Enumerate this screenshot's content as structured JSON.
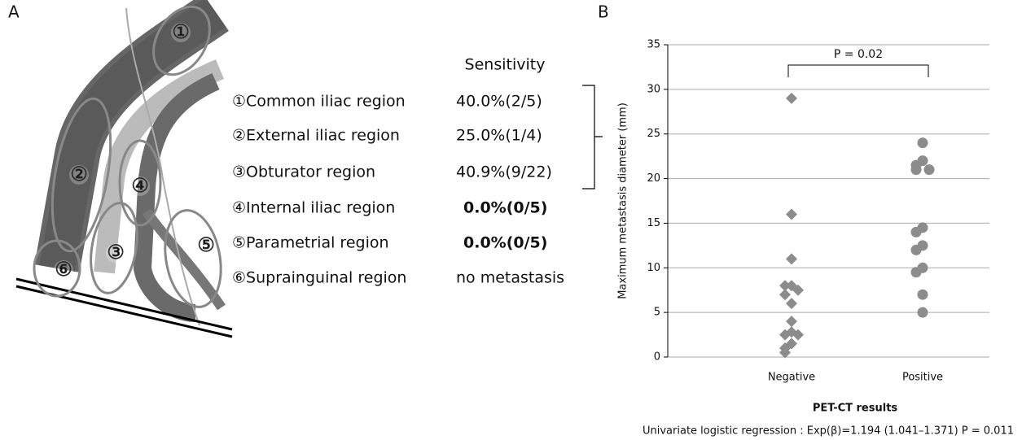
{
  "panel_a": {
    "label": "A",
    "header": "Sensitivity",
    "rows": [
      {
        "region": "①Common iliac region",
        "sensitivity": "40.0%(2/5)",
        "emphasis": false
      },
      {
        "region": "②External iliac region",
        "sensitivity": "25.0%(1/4)",
        "emphasis": false
      },
      {
        "region": "③Obturator region",
        "sensitivity": "40.9%(9/22)",
        "emphasis": false
      },
      {
        "region": "④Internal iliac region",
        "sensitivity": "0.0%(0/5)",
        "emphasis": true
      },
      {
        "region": "⑤Parametrial region",
        "sensitivity": "0.0%(0/5)",
        "emphasis": true
      },
      {
        "region": "⑥Suprainguinal region",
        "sensitivity": "no metastasis",
        "emphasis": false
      }
    ],
    "diagram_labels": [
      "①",
      "②",
      "③",
      "④",
      "⑤",
      "⑥"
    ]
  },
  "chart_data": {
    "type": "strip",
    "label": "B",
    "ylabel": "Maximum metastasis diameter (mm)",
    "xlabel": "PET-CT results",
    "footnote": "Univariate logistic regression : Exp(β)=1.194 (1.041–1.371) P = 0.011",
    "annotation": "P = 0.02",
    "categories": [
      "Negative",
      "Positive"
    ],
    "groups": [
      {
        "marker": "diamond",
        "color": "#8c8c8c",
        "values": [
          29,
          16,
          11,
          8,
          8,
          7.5,
          7,
          6,
          4,
          2.8,
          2.5,
          2.5,
          1.5,
          1,
          0.5
        ]
      },
      {
        "marker": "circle",
        "color": "#8c8c8c",
        "values": [
          24,
          22,
          21.5,
          21,
          21,
          14.5,
          14,
          12.5,
          12,
          10,
          9.5,
          7,
          5
        ]
      }
    ],
    "ylim": [
      0,
      35
    ],
    "yticks": [
      0,
      5,
      10,
      15,
      20,
      25,
      30,
      35
    ],
    "grid": true
  }
}
